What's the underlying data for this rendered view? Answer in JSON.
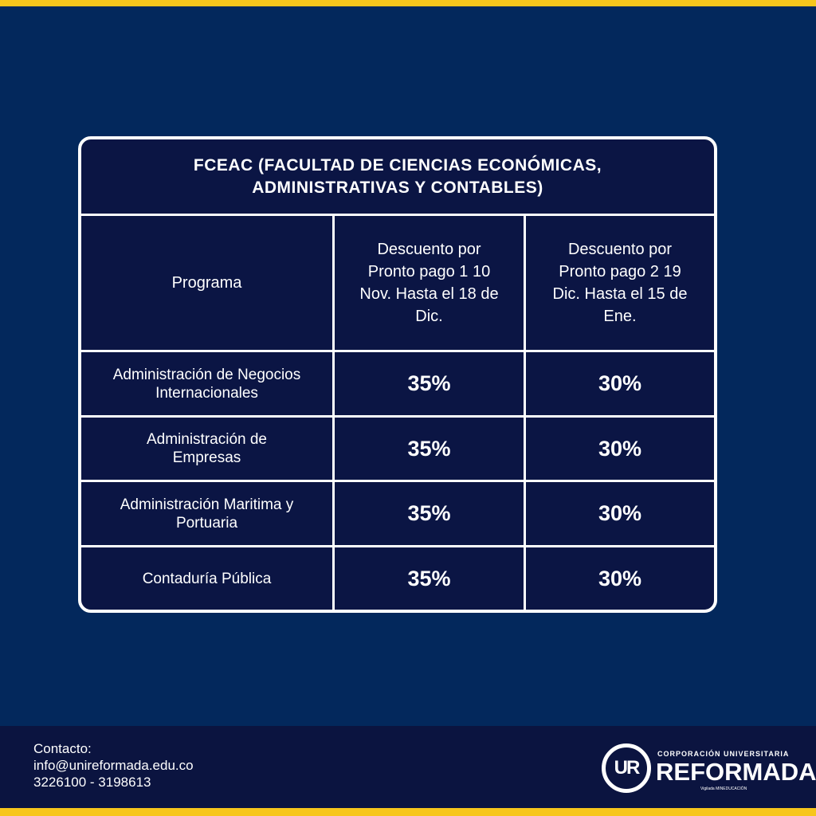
{
  "table": {
    "title": "FCEAC (FACULTAD DE CIENCIAS ECONÓMICAS, ADMINISTRATIVAS Y CONTABLES)",
    "headers": [
      "Programa",
      "Descuento por Pronto pago 1 10 Nov. Hasta el 18 de Dic.",
      "Descuento por Pronto pago 2 19 Dic. Hasta el 15 de Ene."
    ],
    "rows": [
      {
        "program": "Administración de Negocios Internacionales",
        "discount1": "35%",
        "discount2": "30%"
      },
      {
        "program": "Administración de Empresas",
        "discount1": "35%",
        "discount2": "30%"
      },
      {
        "program": "Administración Maritima y Portuaria",
        "discount1": "35%",
        "discount2": "30%"
      },
      {
        "program": "Contaduría Pública",
        "discount1": "35%",
        "discount2": "30%"
      }
    ]
  },
  "footer": {
    "contact_label": "Contacto:",
    "email": "info@unireformada.edu.co",
    "phones": "3226100 - 3198613"
  },
  "logo": {
    "mark": "UR",
    "tagline": "CORPORACIÓN UNIVERSITARIA",
    "name": "REFORMADA.",
    "note": "Vigilada MINEDUCACIÓN"
  },
  "colors": {
    "background": "#03285c",
    "table": "#0b1544",
    "footer": "#0b1440",
    "accent": "#f7c61c"
  }
}
